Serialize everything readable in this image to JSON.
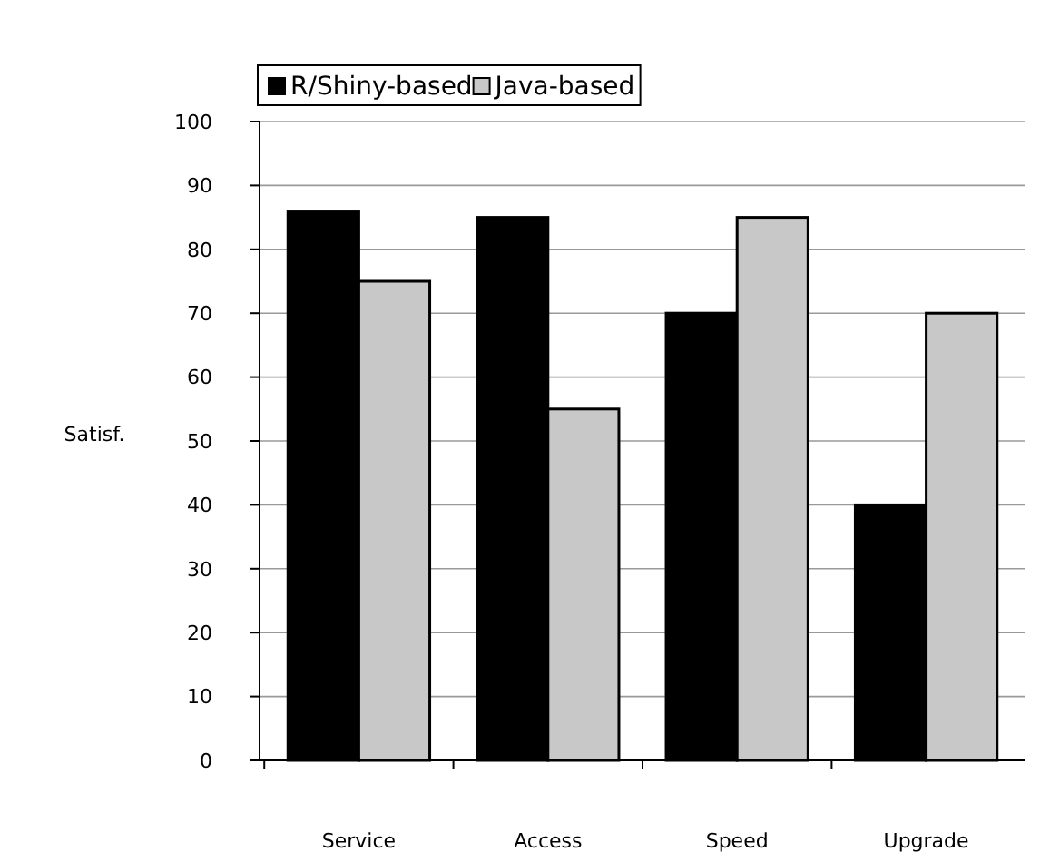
{
  "chart_data": {
    "type": "bar",
    "ylabel": "Satisf.",
    "categories": [
      "Service",
      "Access",
      "Speed",
      "Upgrade"
    ],
    "series": [
      {
        "name": "R/Shiny-based",
        "color": "#000000",
        "values": [
          86,
          85,
          70,
          40
        ]
      },
      {
        "name": "Java-based",
        "color": "#c8c8c8",
        "values": [
          75,
          55,
          85,
          70
        ]
      }
    ],
    "ylim": [
      0,
      100
    ],
    "yticks": [
      0,
      10,
      20,
      30,
      40,
      50,
      60,
      70,
      80,
      90,
      100
    ],
    "grid": "y",
    "legend": "top"
  }
}
